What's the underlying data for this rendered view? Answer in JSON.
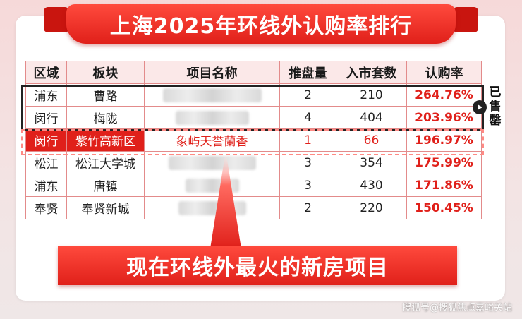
{
  "title": "上海2025年环线外认购率排行",
  "table": {
    "headers": [
      "区域",
      "板块",
      "项目名称",
      "推盘量",
      "入市套数",
      "认购率"
    ],
    "rows": [
      {
        "region": "浦东",
        "sector": "曹路",
        "project": "",
        "supply": "2",
        "units": "210",
        "rate": "264.76%"
      },
      {
        "region": "闵行",
        "sector": "梅陇",
        "project": "",
        "supply": "4",
        "units": "404",
        "rate": "203.96%"
      },
      {
        "region": "闵行",
        "sector": "紫竹高新区",
        "project": "象屿天誉蘭香",
        "supply": "1",
        "units": "66",
        "rate": "196.97%"
      },
      {
        "region": "松江",
        "sector": "松江大学城",
        "project": "",
        "supply": "3",
        "units": "354",
        "rate": "175.99%"
      },
      {
        "region": "浦东",
        "sector": "唐镇",
        "project": "",
        "supply": "3",
        "units": "430",
        "rate": "171.86%"
      },
      {
        "region": "奉贤",
        "sector": "奉贤新城",
        "project": "",
        "supply": "2",
        "units": "220",
        "rate": "150.45%"
      }
    ]
  },
  "sold_label": [
    "已",
    "售",
    "罄"
  ],
  "bottom_banner": "现在环线外最火的新房项目",
  "watermark": "搜狐号@搜狐焦点嘉峪关站",
  "colors": {
    "accent": "#e0201a",
    "border": "#e38b8b",
    "header_bg": "#fbe8e8"
  }
}
